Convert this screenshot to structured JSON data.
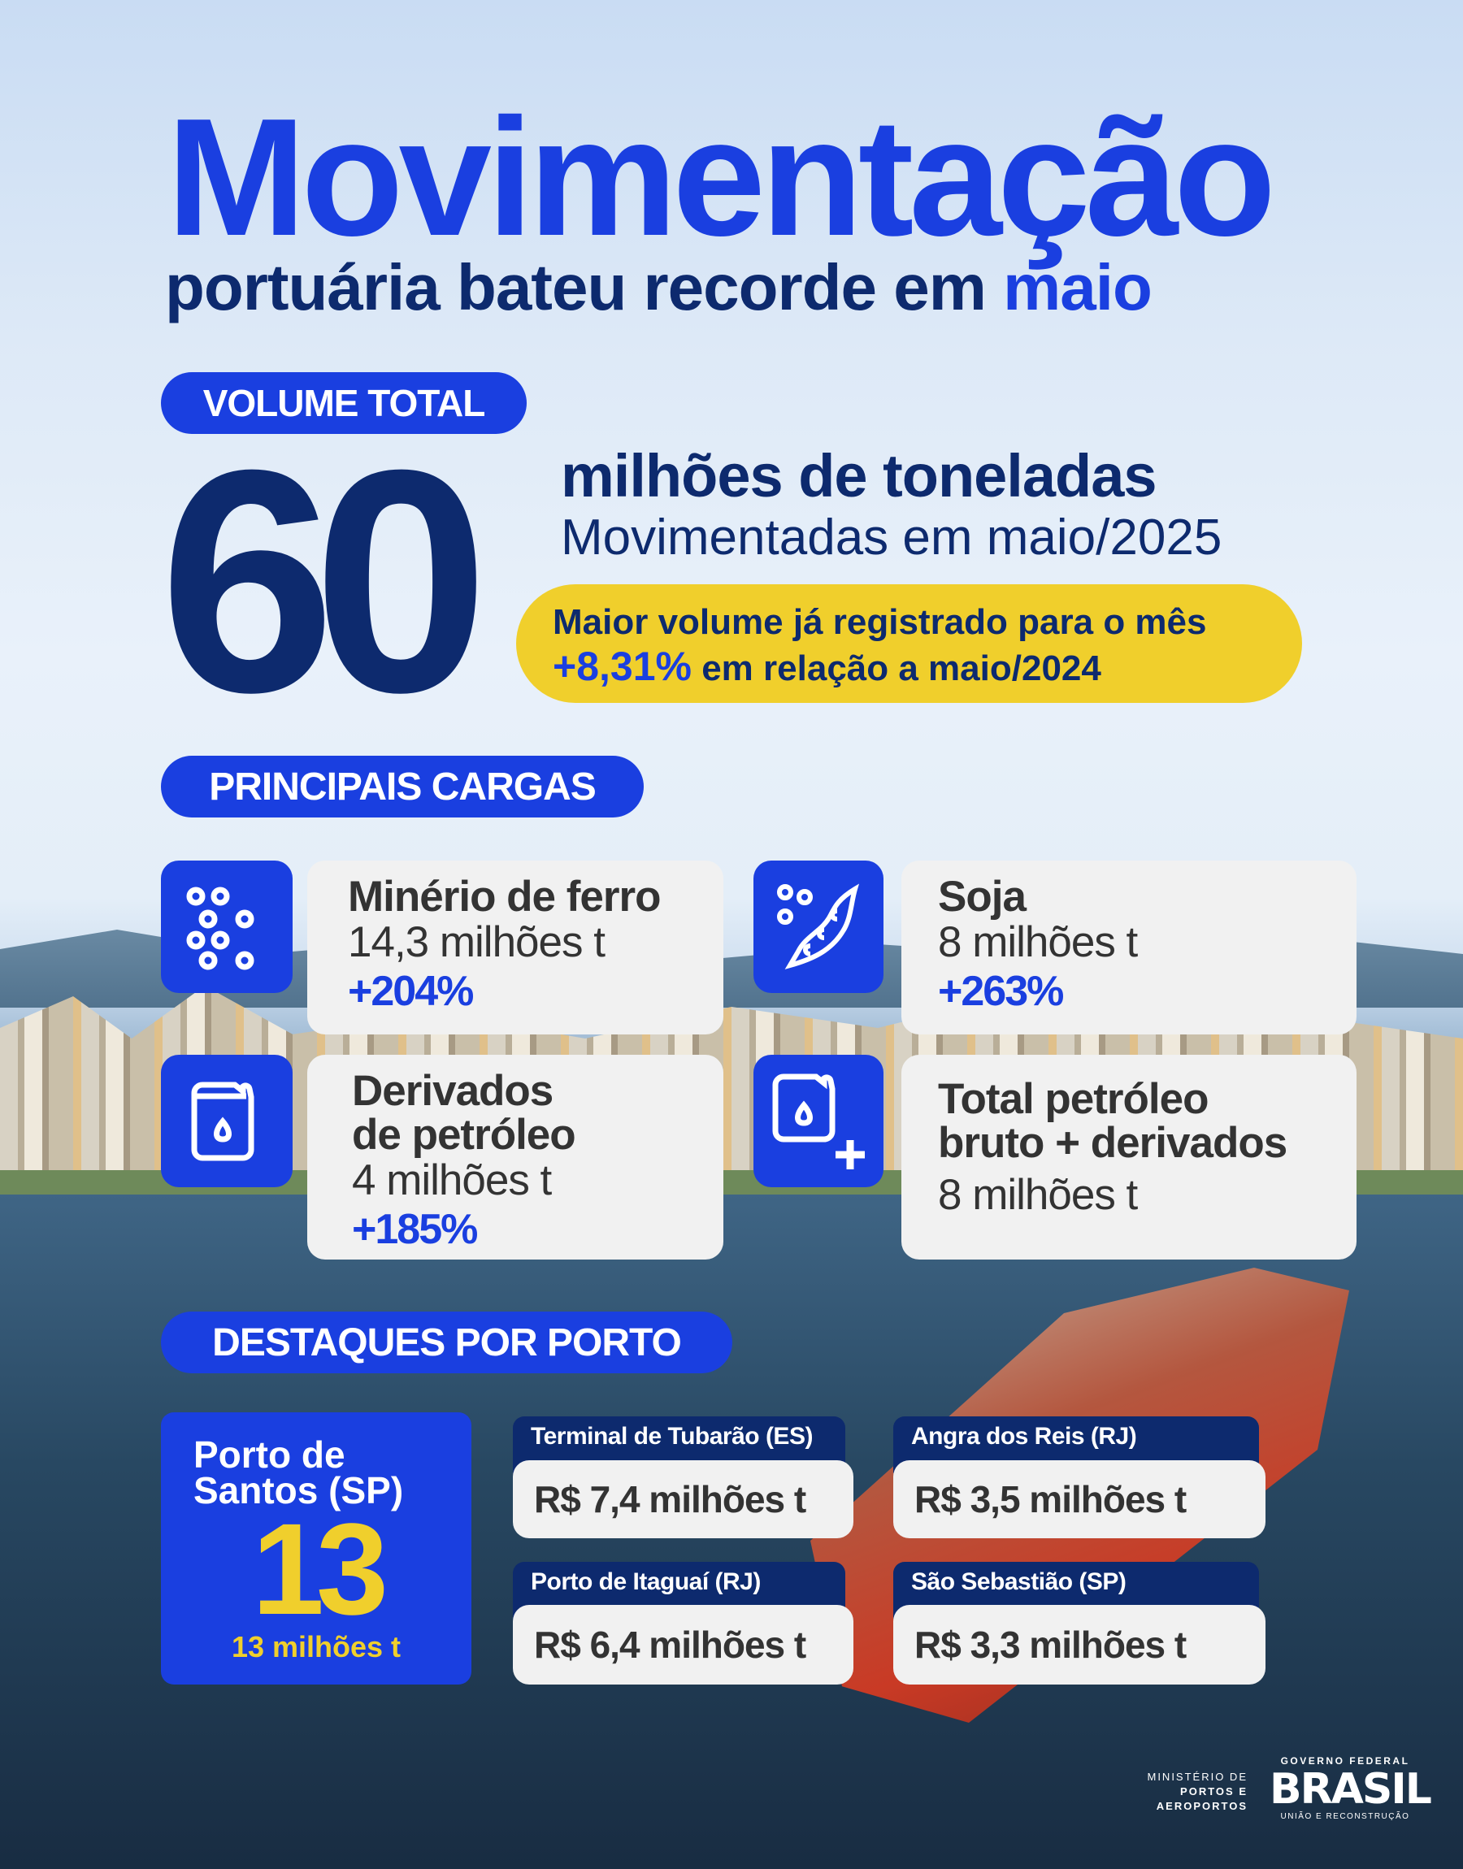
{
  "header": {
    "title": "Movimentação",
    "subtitle_main": "portuária bateu recorde em ",
    "subtitle_highlight": "maio"
  },
  "volume": {
    "section_label": "VOLUME TOTAL",
    "value": "60",
    "unit": "milhões de toneladas",
    "period": "Movimentadas em maio/2025",
    "highlight_line1": "Maior volume já registrado para o mês",
    "highlight_pct": "+8,31%",
    "highlight_line2": " em relação a maio/2024"
  },
  "cargas": {
    "section_label": "PRINCIPAIS CARGAS",
    "items": [
      {
        "icon": "ore-pellets-icon",
        "title": "Minério de ferro",
        "value": "14,3 milhões t",
        "change": "+204%"
      },
      {
        "icon": "soybean-pod-icon",
        "title": "Soja",
        "value": "8 milhões t",
        "change": "+263%"
      },
      {
        "icon": "fuel-canister-icon",
        "title_line1": "Derivados",
        "title_line2": "de petróleo",
        "value": "4 milhões t",
        "change": "+185%"
      },
      {
        "icon": "fuel-canister-plus-icon",
        "title_line1": "Total petróleo",
        "title_line2": "bruto + derivados",
        "value": "8 milhões t"
      }
    ]
  },
  "portos": {
    "section_label": "DESTAQUES POR PORTO",
    "featured": {
      "name_line1": "Porto de",
      "name_line2": "Santos (SP)",
      "value": "13",
      "detail": "13 milhões t"
    },
    "items": [
      {
        "name": "Terminal de Tubarão (ES)",
        "value": "R$ 7,4 milhões t"
      },
      {
        "name": "Angra dos Reis (RJ)",
        "value": "R$ 3,5 milhões t"
      },
      {
        "name": "Porto de Itaguaí (RJ)",
        "value": "R$ 6,4 milhões t"
      },
      {
        "name": "São Sebastião (SP)",
        "value": "R$ 3,3 milhões t"
      }
    ]
  },
  "footer": {
    "ministry_line1": "MINISTÉRIO DE",
    "ministry_line2": "PORTOS E",
    "ministry_line3": "AEROPORTOS",
    "gov_top": "GOVERNO FEDERAL",
    "gov_name": "BRASIL",
    "gov_tagline": "UNIÃO E RECONSTRUÇÃO"
  },
  "colors": {
    "brand_blue": "#1a3fe0",
    "navy": "#0d2a6e",
    "yellow": "#f0cf2c",
    "card": "#f1f1f1"
  }
}
